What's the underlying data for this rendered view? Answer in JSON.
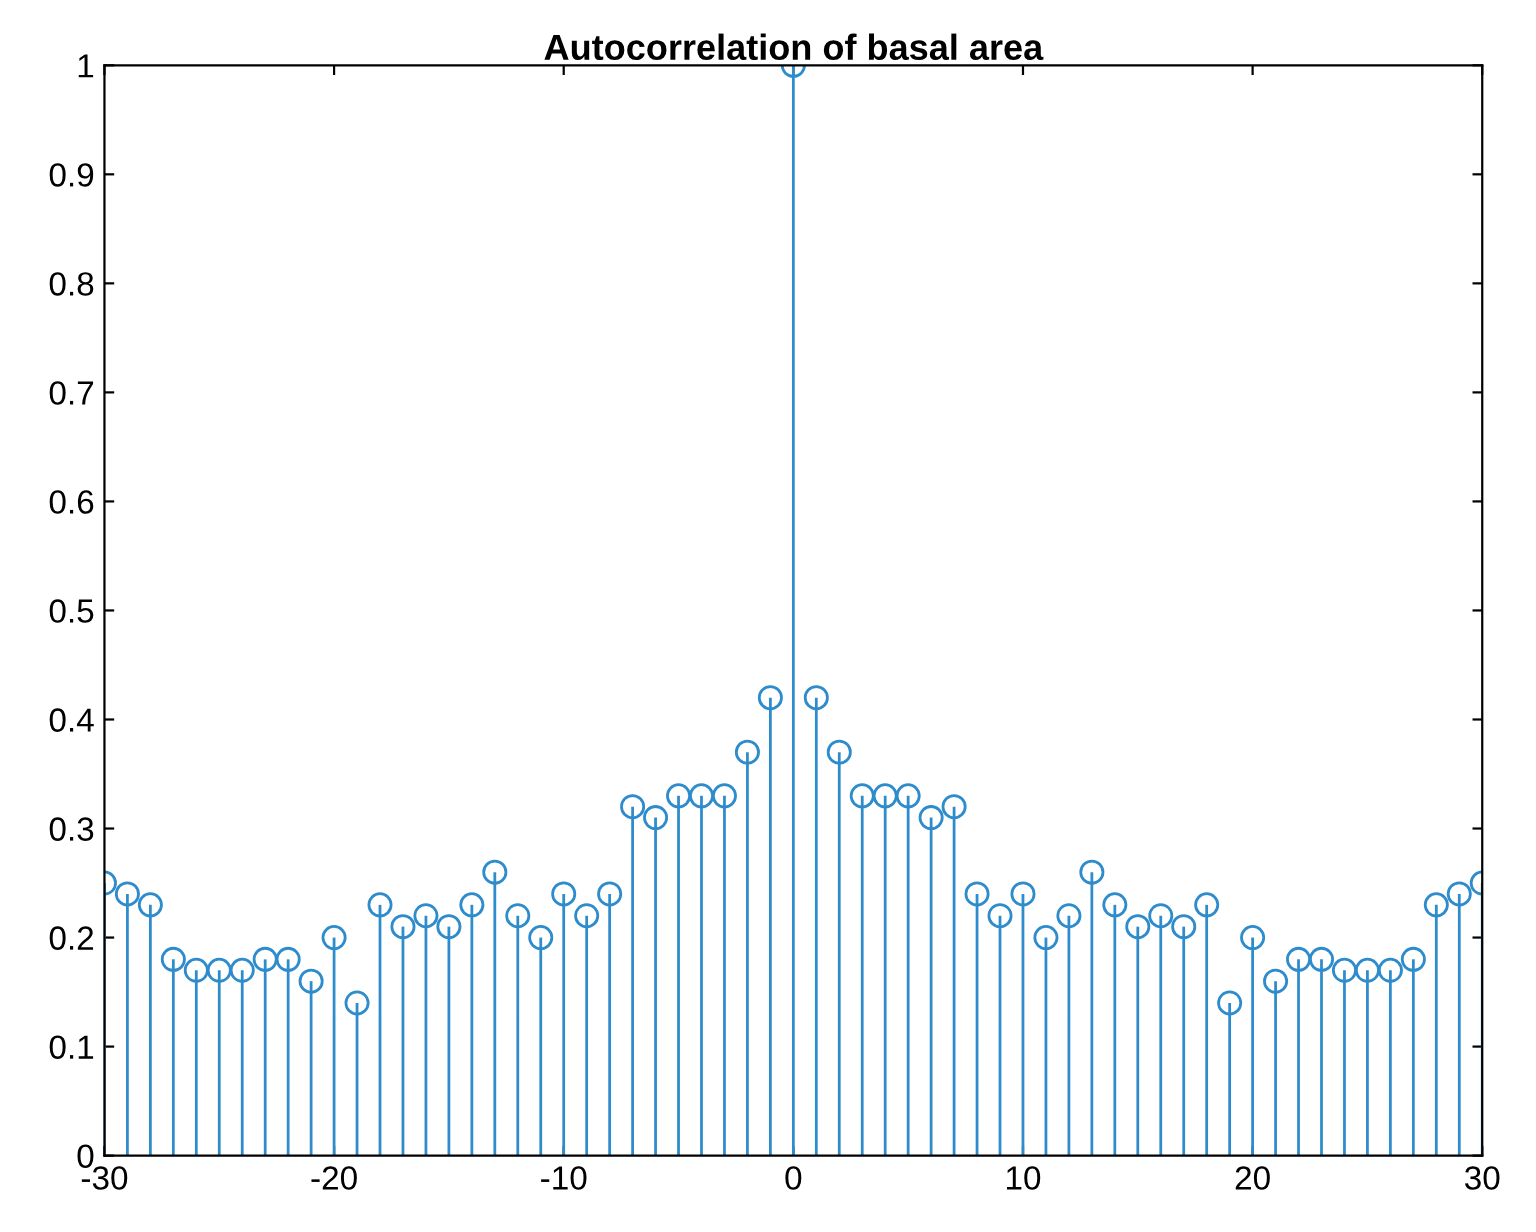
{
  "chart_data": {
    "type": "lollipop",
    "title": "Autocorrelation of basal area",
    "x": [
      -30,
      -29,
      -28,
      -27,
      -26,
      -25,
      -24,
      -23,
      -22,
      -21,
      -20,
      -19,
      -18,
      -17,
      -16,
      -15,
      -14,
      -13,
      -12,
      -11,
      -10,
      -9,
      -8,
      -7,
      -6,
      -5,
      -4,
      -3,
      -2,
      -1,
      0,
      1,
      2,
      3,
      4,
      5,
      6,
      7,
      8,
      9,
      10,
      11,
      12,
      13,
      14,
      15,
      16,
      17,
      18,
      19,
      20,
      21,
      22,
      23,
      24,
      25,
      26,
      27,
      28,
      29,
      30
    ],
    "values": [
      0.25,
      0.24,
      0.23,
      0.18,
      0.17,
      0.17,
      0.17,
      0.18,
      0.18,
      0.16,
      0.2,
      0.14,
      0.23,
      0.21,
      0.22,
      0.21,
      0.23,
      0.26,
      0.22,
      0.2,
      0.24,
      0.22,
      0.24,
      0.32,
      0.31,
      0.33,
      0.33,
      0.33,
      0.37,
      0.42,
      1.0,
      0.42,
      0.37,
      0.33,
      0.33,
      0.33,
      0.31,
      0.32,
      0.24,
      0.22,
      0.24,
      0.2,
      0.22,
      0.26,
      0.23,
      0.21,
      0.22,
      0.21,
      0.23,
      0.14,
      0.2,
      0.16,
      0.18,
      0.18,
      0.17,
      0.17,
      0.17,
      0.18,
      0.23,
      0.24,
      0.25
    ],
    "color": "#2f8ccc",
    "marker": "circle",
    "xlim": [
      -30,
      30
    ],
    "ylim": [
      0,
      1
    ],
    "xticks": [
      -30,
      -20,
      -10,
      0,
      10,
      20,
      30
    ],
    "yticks": [
      0,
      0.1,
      0.2,
      0.3,
      0.4,
      0.5,
      0.6,
      0.7,
      0.8,
      0.9,
      1
    ],
    "grid": false
  }
}
